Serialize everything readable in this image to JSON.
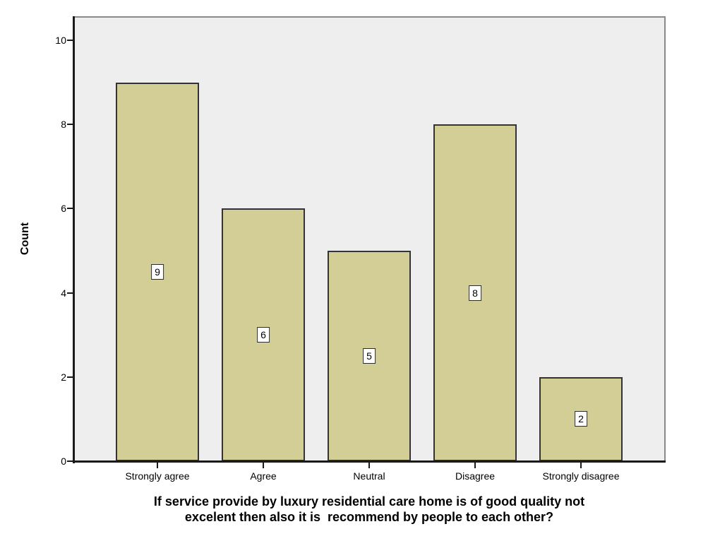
{
  "chart_data": {
    "type": "bar",
    "title": "",
    "xlabel": "If service provide by luxury residential care home is of good quality not\nexcelent then also it is  recommend by people to each other?",
    "ylabel": "Count",
    "categories": [
      "Strongly agree",
      "Agree",
      "Neutral",
      "Disagree",
      "Strongly disagree"
    ],
    "values": [
      9,
      6,
      5,
      8,
      2
    ],
    "bar_value_labels": [
      "9",
      "6",
      "5",
      "8",
      "2"
    ],
    "ylim": [
      0,
      10.6
    ],
    "yticks": [
      0,
      2,
      4,
      6,
      8,
      10
    ],
    "grid": false,
    "legend": false,
    "colors": {
      "bar_fill": "#D3CD96",
      "bar_border": "#333333",
      "plot_background": "#EEEEEE",
      "plot_border": "#8A8A8A",
      "axis_line": "#1A1A1A",
      "text": "#000000",
      "value_label_background": "#FFFFFF"
    }
  }
}
